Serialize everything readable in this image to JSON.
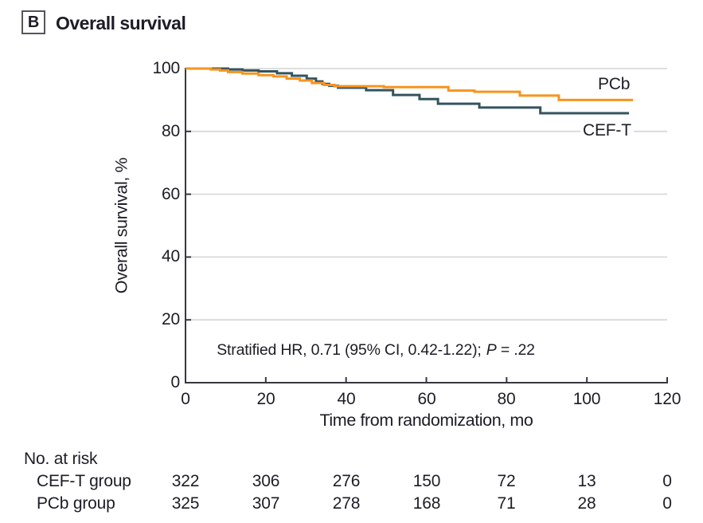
{
  "panel": {
    "label": "B",
    "title": "Overall survival"
  },
  "chart_data": {
    "type": "line",
    "subtype": "kaplan-meier-step",
    "title": "Overall survival",
    "xlabel": "Time from randomization, mo",
    "ylabel": "Overall survival, %",
    "xlim": [
      0,
      120
    ],
    "ylim": [
      0,
      100
    ],
    "x_ticks": [
      "0",
      "20",
      "40",
      "60",
      "80",
      "100",
      "120"
    ],
    "y_ticks_top_to_bottom": [
      "100",
      "80",
      "60",
      "40",
      "20",
      "0"
    ],
    "grid": "horizontal-at-20-40-60-80-100",
    "legend_position": "end-of-line-labels",
    "annotation_parts": {
      "pre": "Stratified HR, 0.71 (95% CI, 0.42-1.22); ",
      "p": "P",
      "post": " = .22"
    },
    "series": [
      {
        "name": "CEF-T",
        "color": "#33545F",
        "end_x": 110.5,
        "points": [
          [
            0,
            100
          ],
          [
            10.6,
            99.7
          ],
          [
            14.2,
            99.4
          ],
          [
            18.2,
            99.1
          ],
          [
            22.8,
            98.5
          ],
          [
            26.5,
            97.7
          ],
          [
            30.2,
            96.8
          ],
          [
            32.5,
            95.9
          ],
          [
            34.1,
            95.1
          ],
          [
            35.8,
            94.5
          ],
          [
            38,
            93.9
          ],
          [
            45,
            93.1
          ],
          [
            51.7,
            91.6
          ],
          [
            58.3,
            90.3
          ],
          [
            62.9,
            88.8
          ],
          [
            73.2,
            87.6
          ],
          [
            88.4,
            85.8
          ]
        ]
      },
      {
        "name": "PCb",
        "color": "#F7941E",
        "end_x": 111.5,
        "points": [
          [
            0,
            100
          ],
          [
            6.3,
            99.7
          ],
          [
            8.6,
            99.4
          ],
          [
            10.6,
            98.9
          ],
          [
            14.2,
            98.4
          ],
          [
            18.2,
            97.9
          ],
          [
            21.9,
            97.5
          ],
          [
            25.2,
            96.8
          ],
          [
            28.5,
            96.2
          ],
          [
            31.5,
            95.4
          ],
          [
            34.5,
            94.8
          ],
          [
            37.1,
            94.4
          ],
          [
            49.4,
            94.1
          ],
          [
            65.5,
            93.0
          ],
          [
            72,
            92.6
          ],
          [
            83.3,
            91.4
          ],
          [
            93,
            90.0
          ]
        ]
      }
    ]
  },
  "risk_table": {
    "title": "No. at risk",
    "time_points": [
      "0",
      "20",
      "40",
      "60",
      "80",
      "100",
      "120"
    ],
    "rows": [
      {
        "label": "CEF-T group",
        "values": [
          "322",
          "306",
          "276",
          "150",
          "72",
          "13",
          "0"
        ]
      },
      {
        "label": "PCb group",
        "values": [
          "325",
          "307",
          "278",
          "168",
          "71",
          "28",
          "0"
        ]
      }
    ]
  },
  "colors": {
    "text": "#1c1d26",
    "axis": "#37383f",
    "gridline": "#d9d9d9",
    "ceft_line": "#33545F",
    "pcb_line": "#F7941E"
  }
}
